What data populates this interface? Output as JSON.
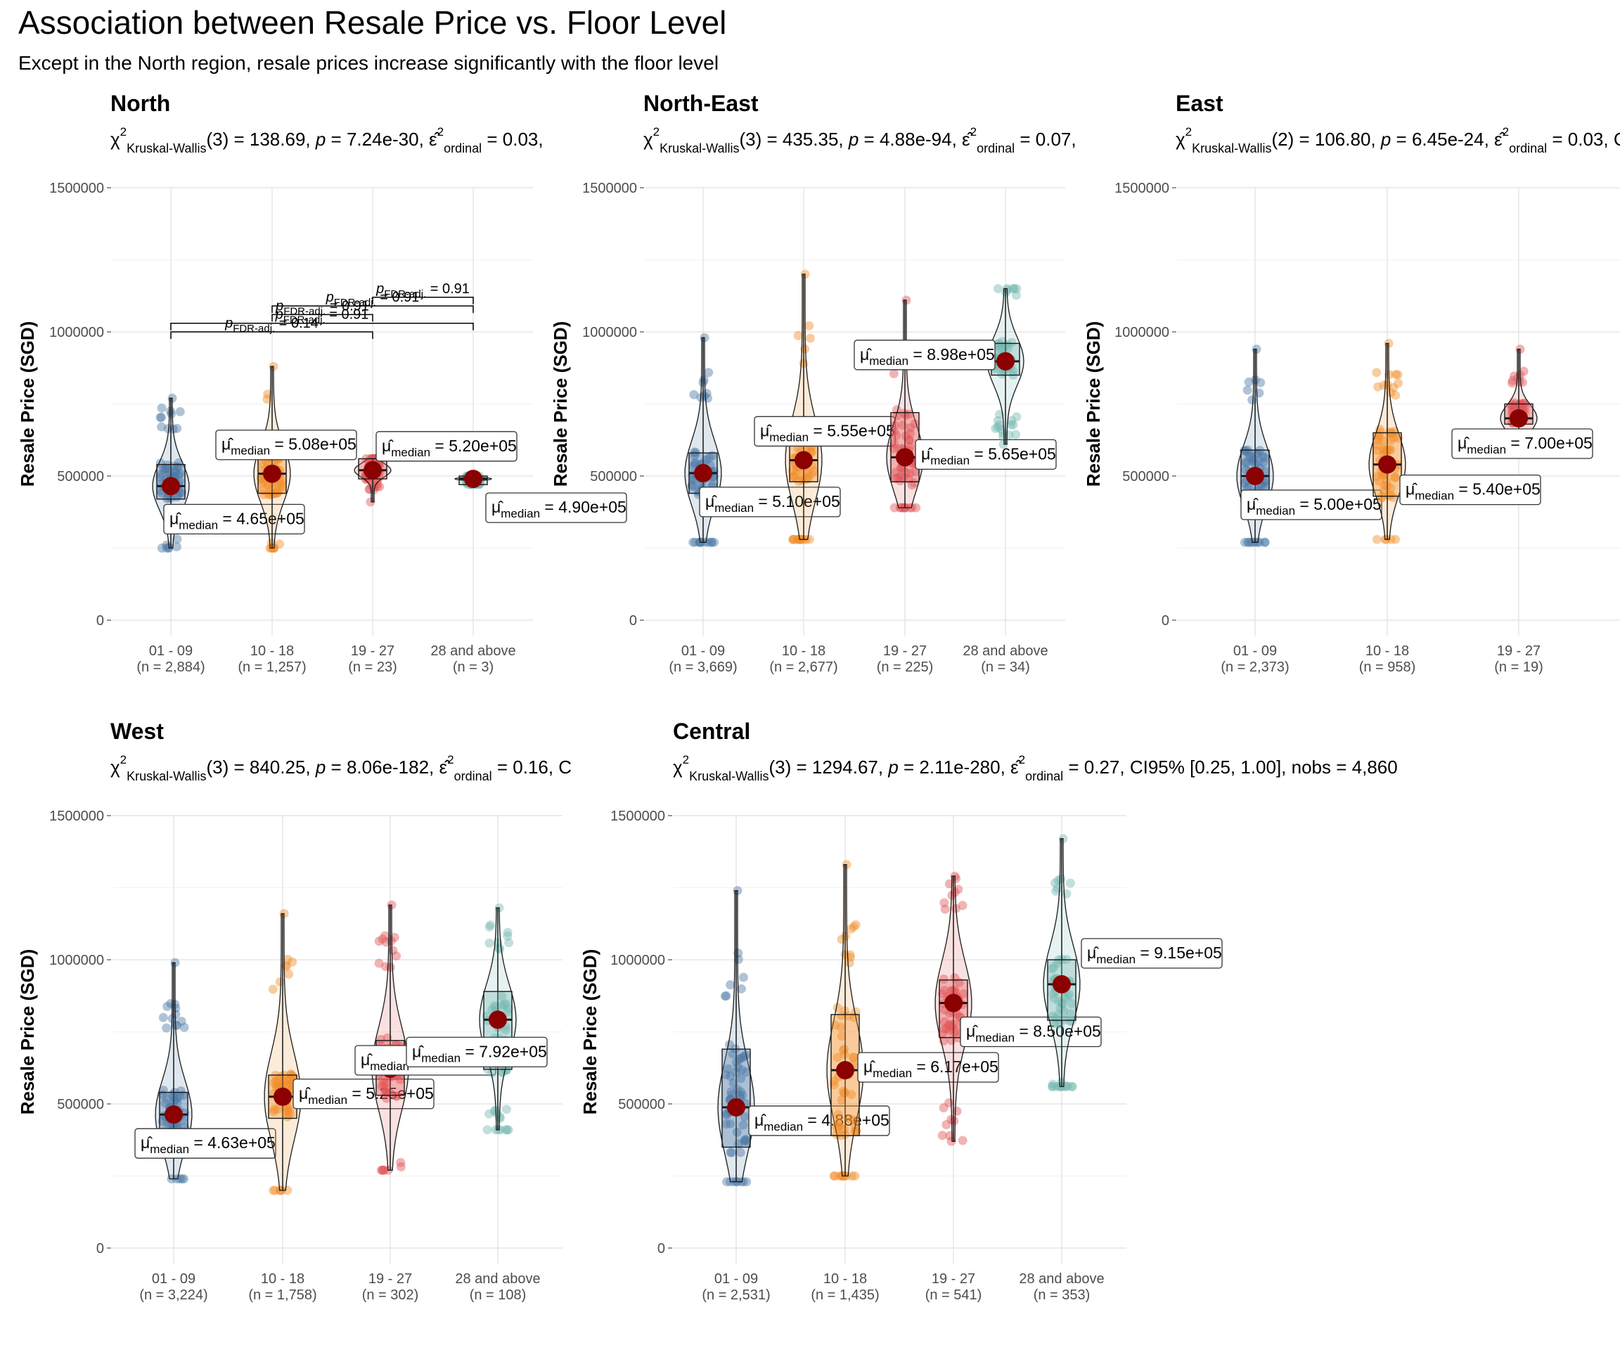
{
  "title": "Association between Resale Price vs. Floor Level",
  "subtitle": "Except in the North region, resale prices increase significantly with the floor level",
  "colors": {
    "series": [
      "#4e79a7",
      "#f28e2b",
      "#e15759",
      "#76b7b2"
    ],
    "median_point": "#8b0000",
    "grid": "#e6e6e6"
  },
  "chart_data": [
    {
      "type": "violin-box",
      "title": "North",
      "stats": {
        "df": "3",
        "chi2": "138.69",
        "p": "7.24e-30",
        "eps": "0.03",
        "trail": ","
      },
      "ylabel": "Resale Price (SGD)",
      "ylim": [
        0,
        1500000
      ],
      "yticks": [
        "0",
        "500000",
        "1000000",
        "1500000"
      ],
      "categories": [
        "01 - 09",
        "10 - 18",
        "19 - 27",
        "28 and above"
      ],
      "n_labels": [
        "(n = 2,884)",
        "(n = 1,257)",
        "(n = 23)",
        "(n = 3)"
      ],
      "medians": [
        465000,
        508000,
        520000,
        490000
      ],
      "median_labels": [
        "4.65e+05",
        "5.08e+05",
        "5.20e+05",
        "4.90e+05"
      ],
      "ranges": [
        [
          250000,
          770000
        ],
        [
          250000,
          880000
        ],
        [
          410000,
          560000
        ],
        [
          470000,
          500000
        ]
      ],
      "boxes": [
        [
          420000,
          540000
        ],
        [
          440000,
          560000
        ],
        [
          490000,
          560000
        ],
        [
          470000,
          500000
        ]
      ],
      "pairwise": [
        {
          "from": 0,
          "to": 2,
          "label": "0.14"
        },
        {
          "from": 0,
          "to": 3,
          "label": "0.91"
        },
        {
          "from": 1,
          "to": 2,
          "label": "0.91"
        },
        {
          "from": 1,
          "to": 3,
          "label": "0.91"
        },
        {
          "from": 2,
          "to": 3,
          "label": "0.91"
        }
      ]
    },
    {
      "type": "violin-box",
      "title": "North-East",
      "stats": {
        "df": "3",
        "chi2": "435.35",
        "p": "4.88e-94",
        "eps": "0.07",
        "trail": ","
      },
      "ylabel": "Resale Price (SGD)",
      "ylim": [
        0,
        1500000
      ],
      "yticks": [
        "0",
        "500000",
        "1000000",
        "1500000"
      ],
      "categories": [
        "01 - 09",
        "10 - 18",
        "19 - 27",
        "28 and above"
      ],
      "n_labels": [
        "(n = 3,669)",
        "(n = 2,677)",
        "(n = 225)",
        "(n = 34)"
      ],
      "medians": [
        510000,
        555000,
        565000,
        898000
      ],
      "median_labels": [
        "5.10e+05",
        "5.55e+05",
        "5.65e+05",
        "8.98e+05"
      ],
      "ranges": [
        [
          270000,
          980000
        ],
        [
          280000,
          1200000
        ],
        [
          390000,
          1110000
        ],
        [
          610000,
          1150000
        ]
      ],
      "boxes": [
        [
          440000,
          580000
        ],
        [
          480000,
          650000
        ],
        [
          480000,
          720000
        ],
        [
          850000,
          960000
        ]
      ]
    },
    {
      "type": "violin-box",
      "title": "East",
      "stats": {
        "df": "2",
        "chi2": "106.80",
        "p": "6.45e-24",
        "eps": "0.03",
        "trail": ", C"
      },
      "ylabel": "Resale Price (SGD)",
      "ylim": [
        0,
        1500000
      ],
      "yticks": [
        "0",
        "500000",
        "1000000",
        "1500000"
      ],
      "categories": [
        "01 - 09",
        "10 - 18",
        "19 - 27"
      ],
      "n_labels": [
        "(n = 2,373)",
        "(n = 958)",
        "(n = 19)"
      ],
      "medians": [
        500000,
        540000,
        700000
      ],
      "median_labels": [
        "5.00e+05",
        "5.40e+05",
        "7.00e+05"
      ],
      "ranges": [
        [
          270000,
          940000
        ],
        [
          280000,
          960000
        ],
        [
          640000,
          940000
        ]
      ],
      "boxes": [
        [
          410000,
          590000
        ],
        [
          430000,
          650000
        ],
        [
          680000,
          750000
        ]
      ]
    },
    {
      "type": "violin-box",
      "title": "West",
      "stats": {
        "df": "3",
        "chi2": "840.25",
        "p": "8.06e-182",
        "eps": "0.16",
        "trail": ", C"
      },
      "ylabel": "Resale Price (SGD)",
      "ylim": [
        0,
        1500000
      ],
      "yticks": [
        "0",
        "500000",
        "1000000",
        "1500000"
      ],
      "categories": [
        "01 - 09",
        "10 - 18",
        "19 - 27",
        "28 and above"
      ],
      "n_labels": [
        "(n = 3,224)",
        "(n = 1,758)",
        "(n = 302)",
        "(n = 108)"
      ],
      "medians": [
        463000,
        525000,
        622000,
        792000
      ],
      "median_labels": [
        "4.63e+05",
        "5.25e+05",
        "6.22e+05",
        "7.92e+05"
      ],
      "ranges": [
        [
          240000,
          990000
        ],
        [
          200000,
          1160000
        ],
        [
          270000,
          1190000
        ],
        [
          410000,
          1180000
        ]
      ],
      "boxes": [
        [
          410000,
          540000
        ],
        [
          450000,
          600000
        ],
        [
          530000,
          720000
        ],
        [
          620000,
          890000
        ]
      ]
    },
    {
      "type": "violin-box",
      "title": "Central",
      "stats": {
        "df": "3",
        "chi2": "1294.67",
        "p": "2.11e-280",
        "eps": "0.27",
        "trail": ", CI95% [0.25, 1.00], nobs = 4,860"
      },
      "ylabel": "Resale Price (SGD)",
      "ylim": [
        0,
        1500000
      ],
      "yticks": [
        "0",
        "500000",
        "1000000",
        "1500000"
      ],
      "categories": [
        "01 - 09",
        "10 - 18",
        "19 - 27",
        "28 and above"
      ],
      "n_labels": [
        "(n = 2,531)",
        "(n = 1,435)",
        "(n = 541)",
        "(n = 353)"
      ],
      "medians": [
        488000,
        617000,
        850000,
        915000
      ],
      "median_labels": [
        "4.88e+05",
        "6.17e+05",
        "8.50e+05",
        "9.15e+05"
      ],
      "ranges": [
        [
          230000,
          1240000
        ],
        [
          250000,
          1330000
        ],
        [
          370000,
          1290000
        ],
        [
          560000,
          1420000
        ]
      ],
      "boxes": [
        [
          350000,
          690000
        ],
        [
          390000,
          810000
        ],
        [
          730000,
          930000
        ],
        [
          790000,
          1000000
        ]
      ]
    }
  ]
}
